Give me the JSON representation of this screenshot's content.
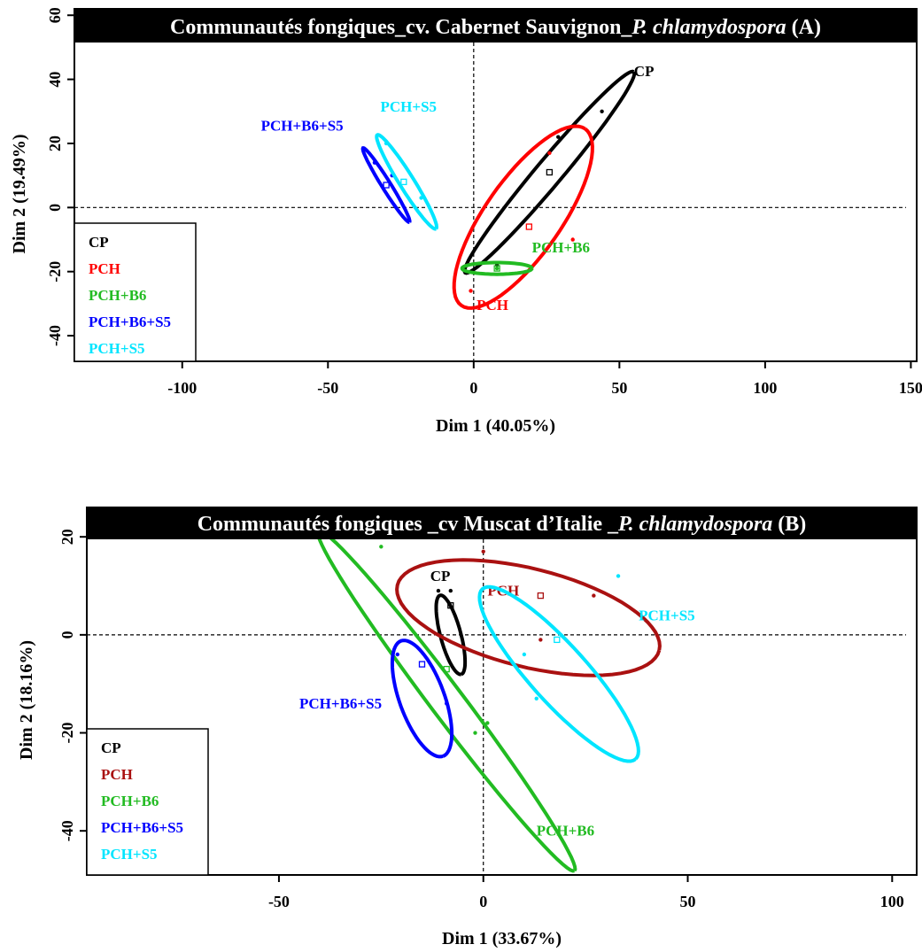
{
  "chart_data": [
    {
      "type": "scatter",
      "title_plain": "Communautés fongiques_cv. Cabernet Sauvignon_",
      "title_italic": "P. chlamydospora",
      "title_end": " (A)",
      "xlabel": "Dim 1 (40.05%)",
      "ylabel": "Dim 2 (19.49%)",
      "xlim": [
        -137,
        152
      ],
      "ylim": [
        -48,
        62
      ],
      "xticks": [
        -100,
        -50,
        0,
        50,
        100,
        150
      ],
      "yticks": [
        -40,
        -20,
        0,
        20,
        40,
        60
      ],
      "legend": [
        "CP",
        "PCH",
        "PCH+B6",
        "PCH+B6+S5",
        "PCH+S5"
      ],
      "series": [
        {
          "name": "CP",
          "color": "#000000",
          "center": [
            26,
            11
          ],
          "points": [
            [
              44,
              30
            ],
            [
              29,
              22
            ],
            [
              8,
              -18
            ]
          ],
          "ellipse": {
            "cx": 26,
            "cy": 11,
            "a": 45,
            "b": 4.5,
            "angle_deg": 50
          },
          "label": "CP",
          "label_at": [
            55,
            41
          ]
        },
        {
          "name": "PCH",
          "color": "#ff0000",
          "center": [
            19,
            -6
          ],
          "points": [
            [
              26,
              17
            ],
            [
              34,
              -10
            ],
            [
              -1,
              -26
            ]
          ],
          "ellipse": {
            "cx": 17,
            "cy": -3,
            "a": 37,
            "b": 13,
            "angle_deg": 55
          },
          "label": "PCH",
          "label_at": [
            1,
            -32
          ]
        },
        {
          "name": "PCH+B6",
          "color": "#22bb22",
          "center": [
            8,
            -19
          ],
          "points": [
            [
              8,
              -19
            ]
          ],
          "ellipse": {
            "cx": 8,
            "cy": -19,
            "a": 12,
            "b": 2,
            "angle_deg": 0
          },
          "label": "PCH+B6",
          "label_at": [
            20,
            -14
          ]
        },
        {
          "name": "PCH+B6+S5",
          "color": "#0000ff",
          "center": [
            -30,
            7
          ],
          "points": [
            [
              -28,
              10
            ],
            [
              -34,
              14
            ]
          ],
          "ellipse": {
            "cx": -30,
            "cy": 7,
            "a": 15,
            "b": 1.5,
            "angle_deg": -58
          },
          "label": "PCH+B6+S5",
          "label_at": [
            -73,
            24
          ]
        },
        {
          "name": "PCH+S5",
          "color": "#00e5ff",
          "center": [
            -24,
            8
          ],
          "points": [
            [
              -18,
              3
            ],
            [
              -30,
              20
            ]
          ],
          "ellipse": {
            "cx": -23,
            "cy": 8,
            "a": 19,
            "b": 2.5,
            "angle_deg": -58
          },
          "label": "PCH+S5",
          "label_at": [
            -32,
            30
          ]
        }
      ]
    },
    {
      "type": "scatter",
      "title_plain": "Communautés fongiques _cv Muscat d’Italie _",
      "title_italic": "P. chlamydospora",
      "title_end": " (B)",
      "xlabel": "Dim 1 (33.67%)",
      "ylabel": "Dim 2 (18.16%)",
      "xlim": [
        -97,
        106
      ],
      "ylim": [
        -49,
        26
      ],
      "xticks": [
        -50,
        0,
        50,
        100
      ],
      "yticks": [
        -40,
        -20,
        0,
        20
      ],
      "legend": [
        "CP",
        "PCH",
        "PCH+B6",
        "PCH+B6+S5",
        "PCH+S5"
      ],
      "series": [
        {
          "name": "CP",
          "color": "#000000",
          "center": [
            -8,
            6
          ],
          "points": [
            [
              -8,
              9
            ],
            [
              -11,
              9
            ]
          ],
          "ellipse": {
            "cx": -8,
            "cy": 0,
            "a": 10,
            "b": 2.5,
            "angle_deg": -75
          },
          "label": "CP",
          "label_at": [
            -13,
            11
          ]
        },
        {
          "name": "PCH",
          "color": "#aa1111",
          "center": [
            14,
            8
          ],
          "points": [
            [
              0,
              17
            ],
            [
              27,
              8
            ],
            [
              14,
              -1
            ]
          ],
          "ellipse": {
            "cx": 11,
            "cy": 3.5,
            "a": 33,
            "b": 12,
            "angle_deg": -14
          },
          "label": "PCH",
          "label_at": [
            1,
            8
          ]
        },
        {
          "name": "PCH+B6",
          "color": "#22bb22",
          "center": [
            -9,
            -7
          ],
          "points": [
            [
              -25,
              18
            ],
            [
              1,
              -18
            ],
            [
              -2,
              -20
            ]
          ],
          "ellipse": {
            "cx": -9,
            "cy": -13.5,
            "a": 52,
            "b": 4,
            "angle_deg": -53
          },
          "label": "PCH+B6",
          "label_at": [
            13,
            -41
          ]
        },
        {
          "name": "PCH+B6+S5",
          "color": "#0000ff",
          "center": [
            -15,
            -6
          ],
          "points": [
            [
              -21,
              -4
            ],
            [
              -9,
              -14
            ]
          ],
          "ellipse": {
            "cx": -15,
            "cy": -13,
            "a": 15,
            "b": 5.5,
            "angle_deg": -70
          },
          "label": "PCH+B6+S5",
          "label_at": [
            -45,
            -15
          ]
        },
        {
          "name": "PCH+S5",
          "color": "#00e5ff",
          "center": [
            18,
            -1
          ],
          "points": [
            [
              33,
              12
            ],
            [
              10,
              -4
            ],
            [
              13,
              -13
            ]
          ],
          "ellipse": {
            "cx": 18.5,
            "cy": -8,
            "a": 28,
            "b": 7,
            "angle_deg": -48
          },
          "label": "PCH+S5",
          "label_at": [
            38,
            3
          ]
        }
      ]
    }
  ]
}
